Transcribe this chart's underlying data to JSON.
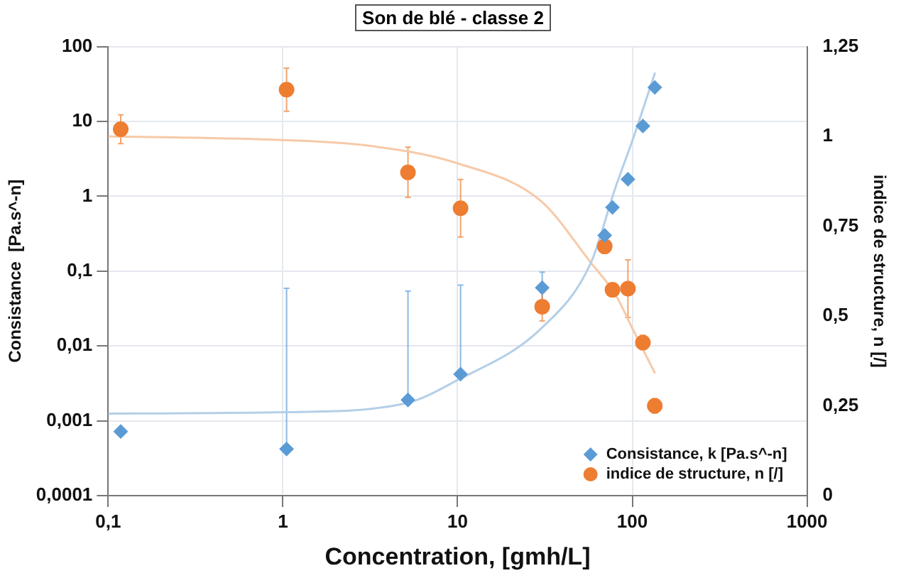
{
  "chart_data": {
    "type": "scatter",
    "title": "Son de blé - classe 2",
    "xlabel": "Concentration, [gmh/L]",
    "ylabel": "Consistance  [Pa.s^-n]",
    "y2label": "indice de structure, n [/]",
    "log": "xy",
    "grid": true,
    "legend": "bottom right",
    "xlim": [
      0.1,
      1000
    ],
    "xticks": [
      {
        "value": 0.1,
        "label": "0,1"
      },
      1,
      10,
      100,
      1000
    ],
    "ylim": [
      0.0001,
      100
    ],
    "yticks": [
      {
        "value": 0.0001,
        "label": "0,0001"
      },
      {
        "value": 0.001,
        "label": "0,001"
      },
      {
        "value": 0.01,
        "label": "0,01"
      },
      {
        "value": 0.1,
        "label": "0,1"
      },
      1,
      10,
      100
    ],
    "y2lim": [
      0,
      1.25
    ],
    "y2ticks": [
      0,
      {
        "value": 0.25,
        "label": "0,25"
      },
      {
        "value": 0.5,
        "label": "0,5"
      },
      {
        "value": 0.75,
        "label": "0,75"
      },
      1,
      {
        "value": 1.25,
        "label": "1,25"
      }
    ],
    "series": [
      {
        "name": "Consistance, k [Pa.s^-n]",
        "marker": "diamond",
        "color": "#5b9bd5",
        "x": [
          0.118,
          1.05,
          5.2,
          10.4,
          30.5,
          69.5,
          77,
          94.4,
          115,
          134.5
        ],
        "values": [
          0.00072,
          0.00042,
          0.0019,
          0.0042,
          0.06,
          0.3,
          0.71,
          1.69,
          8.7,
          28.5
        ],
        "errors": [
          null,
          [
            0.00042,
            0.059
          ],
          [
            0.0019,
            0.054
          ],
          [
            0.0042,
            0.065
          ],
          [
            0.04,
            0.097
          ],
          null,
          null,
          null,
          null,
          null
        ]
      },
      {
        "name": "indice de structure, n [/]",
        "marker": "circle",
        "axis": "y2",
        "color": "#ed7d31",
        "x": [
          0.118,
          1.05,
          5.2,
          10.4,
          30.5,
          69.5,
          77,
          94.4,
          115,
          134.5
        ],
        "values": [
          1.02,
          1.13,
          0.9,
          0.8,
          0.526,
          0.694,
          0.573,
          0.576,
          0.426,
          0.25
        ],
        "errors": [
          0.04,
          0.06,
          0.07,
          0.08,
          0.04,
          0.02,
          null,
          0.08,
          0.02,
          0.02
        ]
      },
      {
        "type": "line",
        "marker": "none",
        "color": "#b4cfe8",
        "x": [
          0.1,
          1,
          5,
          10,
          30,
          58,
          80,
          100,
          135
        ],
        "values": [
          0.00125,
          0.0013,
          0.0017,
          0.0035,
          0.017,
          0.13,
          1.3,
          5.5,
          45
        ]
      },
      {
        "type": "line",
        "marker": "none",
        "axis": "y2",
        "color": "#f7c9a8",
        "x": [
          0.1,
          1,
          3,
          10,
          30,
          58,
          80,
          100,
          135
        ],
        "values": [
          1.0,
          0.99,
          0.975,
          0.925,
          0.82,
          0.648,
          0.56,
          0.466,
          0.34
        ]
      }
    ]
  }
}
